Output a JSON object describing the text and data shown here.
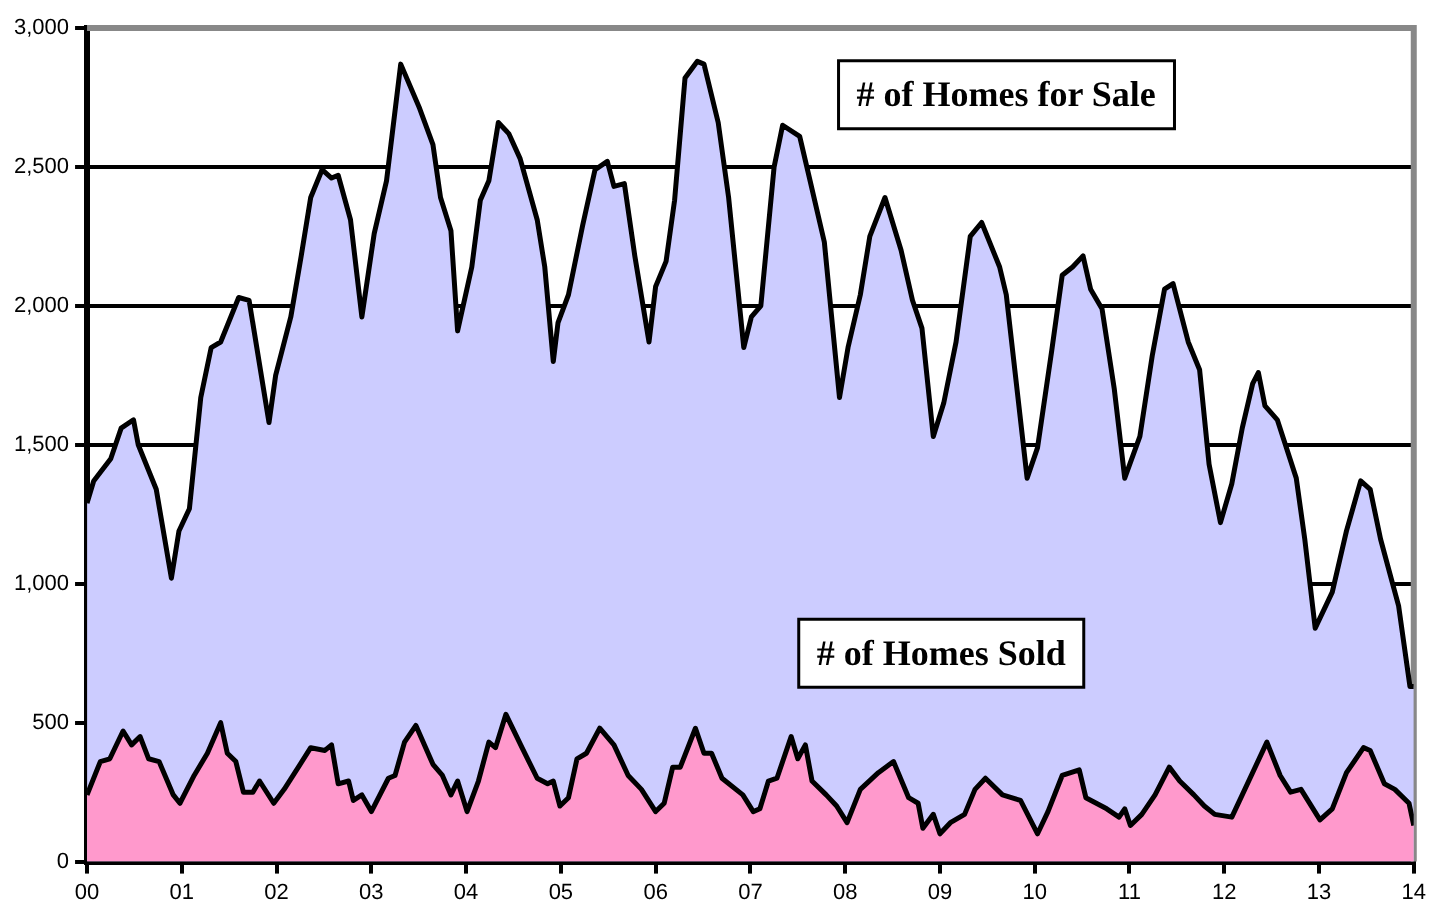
{
  "chart_data": {
    "type": "area",
    "xlim": [
      0,
      14
    ],
    "xticks": [
      {
        "value": 0,
        "label": "00"
      },
      {
        "value": 1,
        "label": "01"
      },
      {
        "value": 2,
        "label": "02"
      },
      {
        "value": 3,
        "label": "03"
      },
      {
        "value": 4,
        "label": "04"
      },
      {
        "value": 5,
        "label": "05"
      },
      {
        "value": 6,
        "label": "06"
      },
      {
        "value": 7,
        "label": "07"
      },
      {
        "value": 8,
        "label": "08"
      },
      {
        "value": 9,
        "label": "09"
      },
      {
        "value": 10,
        "label": "10"
      },
      {
        "value": 11,
        "label": "11"
      },
      {
        "value": 12,
        "label": "12"
      },
      {
        "value": 13,
        "label": "13"
      },
      {
        "value": 14,
        "label": "14"
      }
    ],
    "ylim": [
      0,
      3000
    ],
    "yticks": [
      {
        "value": 0,
        "label": "0"
      },
      {
        "value": 500,
        "label": "500"
      },
      {
        "value": 1000,
        "label": "1,000"
      },
      {
        "value": 1500,
        "label": "1,500"
      },
      {
        "value": 2000,
        "label": "2,000"
      },
      {
        "value": 2500,
        "label": "2,500"
      },
      {
        "value": 3000,
        "label": "3,000"
      }
    ],
    "grid": "y",
    "legend": false,
    "marker": "none",
    "line_style": "solid",
    "series": [
      {
        "name": "# of Homes for Sale",
        "color": "#ccccff",
        "x": [
          0,
          0.07,
          0.25,
          0.36,
          0.49,
          0.54,
          0.73,
          0.89,
          0.97,
          1.08,
          1.2,
          1.31,
          1.41,
          1.6,
          1.71,
          1.92,
          1.99,
          2.15,
          2.26,
          2.36,
          2.48,
          2.58,
          2.65,
          2.78,
          2.9,
          3.03,
          3.16,
          3.31,
          3.51,
          3.65,
          3.73,
          3.84,
          3.91,
          4.06,
          4.15,
          4.24,
          4.34,
          4.45,
          4.57,
          4.75,
          4.83,
          4.92,
          4.97,
          5.08,
          5.23,
          5.36,
          5.49,
          5.56,
          5.67,
          5.78,
          5.93,
          6.0,
          6.11,
          6.2,
          6.31,
          6.44,
          6.51,
          6.66,
          6.77,
          6.93,
          7.01,
          7.11,
          7.25,
          7.34,
          7.52,
          7.63,
          7.78,
          7.94,
          8.03,
          8.16,
          8.26,
          8.42,
          8.59,
          8.71,
          8.81,
          8.93,
          9.04,
          9.17,
          9.32,
          9.44,
          9.63,
          9.7,
          9.92,
          10.03,
          10.18,
          10.29,
          10.4,
          10.51,
          10.59,
          10.71,
          10.84,
          10.95,
          11.11,
          11.24,
          11.37,
          11.46,
          11.62,
          11.74,
          11.84,
          11.96,
          12.08,
          12.19,
          12.3,
          12.36,
          12.43,
          12.56,
          12.76,
          12.85,
          12.96,
          13.14,
          13.29,
          13.44,
          13.54,
          13.65,
          13.84,
          13.96,
          14.0
        ],
        "values": [
          1290,
          1370,
          1450,
          1560,
          1590,
          1500,
          1340,
          1020,
          1190,
          1270,
          1670,
          1850,
          1870,
          2030,
          2020,
          1580,
          1750,
          1960,
          2180,
          2390,
          2490,
          2460,
          2470,
          2310,
          1960,
          2260,
          2450,
          2870,
          2710,
          2580,
          2390,
          2270,
          1910,
          2140,
          2380,
          2450,
          2660,
          2620,
          2530,
          2310,
          2140,
          1800,
          1940,
          2040,
          2290,
          2490,
          2520,
          2430,
          2440,
          2180,
          1870,
          2070,
          2160,
          2380,
          2820,
          2880,
          2870,
          2660,
          2390,
          1850,
          1960,
          2000,
          2500,
          2650,
          2610,
          2450,
          2230,
          1670,
          1850,
          2040,
          2250,
          2390,
          2200,
          2020,
          1920,
          1530,
          1650,
          1870,
          2250,
          2300,
          2140,
          2040,
          1380,
          1490,
          1840,
          2110,
          2140,
          2180,
          2060,
          1990,
          1700,
          1380,
          1530,
          1820,
          2060,
          2080,
          1870,
          1770,
          1430,
          1220,
          1360,
          1560,
          1720,
          1760,
          1640,
          1590,
          1380,
          1160,
          840,
          970,
          1190,
          1370,
          1340,
          1160,
          920,
          630,
          630
        ]
      },
      {
        "name": "# of Homes Sold",
        "color": "#ff99cc",
        "x": [
          0,
          0.14,
          0.24,
          0.38,
          0.47,
          0.56,
          0.65,
          0.76,
          0.91,
          0.98,
          1.13,
          1.27,
          1.41,
          1.48,
          1.57,
          1.65,
          1.75,
          1.82,
          1.97,
          2.08,
          2.23,
          2.36,
          2.51,
          2.58,
          2.65,
          2.76,
          2.81,
          2.9,
          3.0,
          3.18,
          3.25,
          3.35,
          3.47,
          3.65,
          3.75,
          3.84,
          3.91,
          4.01,
          4.13,
          4.24,
          4.31,
          4.42,
          4.59,
          4.75,
          4.86,
          4.92,
          4.99,
          5.08,
          5.17,
          5.27,
          5.41,
          5.56,
          5.71,
          5.85,
          6.0,
          6.09,
          6.18,
          6.26,
          6.42,
          6.51,
          6.59,
          6.7,
          6.92,
          7.03,
          7.1,
          7.19,
          7.28,
          7.43,
          7.5,
          7.58,
          7.65,
          7.8,
          7.91,
          8.02,
          8.16,
          8.35,
          8.51,
          8.67,
          8.77,
          8.82,
          8.93,
          9.0,
          9.11,
          9.26,
          9.37,
          9.48,
          9.66,
          9.85,
          10.03,
          10.14,
          10.29,
          10.47,
          10.54,
          10.76,
          10.89,
          10.95,
          11.01,
          11.13,
          11.27,
          11.42,
          11.53,
          11.68,
          11.79,
          11.9,
          12.08,
          12.19,
          12.45,
          12.59,
          12.7,
          12.81,
          13.01,
          13.14,
          13.29,
          13.47,
          13.54,
          13.69,
          13.8,
          13.95,
          14.0
        ],
        "values": [
          240,
          360,
          370,
          470,
          420,
          450,
          370,
          360,
          240,
          210,
          310,
          390,
          500,
          390,
          360,
          250,
          250,
          290,
          210,
          260,
          340,
          410,
          400,
          420,
          280,
          290,
          220,
          240,
          180,
          300,
          310,
          430,
          490,
          350,
          310,
          240,
          290,
          180,
          290,
          430,
          410,
          530,
          410,
          300,
          280,
          290,
          200,
          230,
          370,
          390,
          480,
          420,
          310,
          260,
          180,
          210,
          340,
          340,
          480,
          390,
          390,
          300,
          240,
          180,
          190,
          290,
          300,
          450,
          370,
          420,
          290,
          240,
          200,
          140,
          260,
          320,
          360,
          230,
          210,
          120,
          170,
          100,
          140,
          170,
          260,
          300,
          240,
          220,
          100,
          180,
          310,
          330,
          230,
          190,
          160,
          190,
          130,
          170,
          240,
          340,
          290,
          240,
          200,
          170,
          160,
          240,
          430,
          310,
          250,
          260,
          150,
          190,
          320,
          410,
          400,
          280,
          260,
          210,
          130
        ]
      }
    ]
  }
}
